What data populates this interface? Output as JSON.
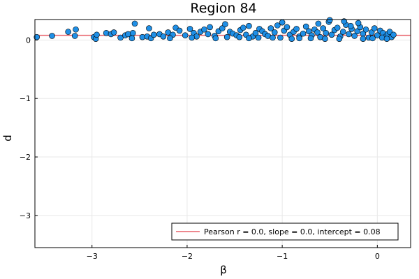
{
  "chart_data": {
    "type": "scatter",
    "title": "Region 84",
    "xlabel": "β",
    "ylabel": "d",
    "xlim": [
      -3.6,
      0.35
    ],
    "ylim": [
      -3.55,
      0.35
    ],
    "x_ticks": [
      -3,
      -2,
      -1,
      0
    ],
    "x_tick_labels": [
      "−3",
      "−2",
      "−1",
      "0"
    ],
    "y_ticks": [
      0,
      -1,
      -2,
      -3
    ],
    "y_tick_labels": [
      "0",
      "−1",
      "−2",
      "−3"
    ],
    "grid": true,
    "legend_position": "bottom-right",
    "colors": {
      "points": "#1f8fe6",
      "point_edge": "#000000",
      "fit_line": "#e8606a",
      "grid": "#e8e8e8"
    },
    "fit_line": {
      "label": "Pearson r = 0.0, slope = 0.0, intercept = 0.08",
      "slope": 0.0,
      "intercept": 0.08
    },
    "series": [
      {
        "x": [
          -3.58,
          -3.42,
          -3.25,
          -3.18,
          -3.17,
          -2.98,
          -2.96,
          -2.95,
          -2.85,
          -2.8,
          -2.77,
          -2.7,
          -2.65,
          -2.62,
          -2.57,
          -2.55,
          -2.47,
          -2.42,
          -2.38,
          -2.35,
          -2.29,
          -2.25,
          -2.2,
          -2.15,
          -2.12,
          -2.08,
          -2.02,
          -1.97,
          -1.93,
          -1.9,
          -1.86,
          -1.82,
          -1.78,
          -1.76,
          -1.71,
          -1.67,
          -1.63,
          -1.58,
          -1.55,
          -1.52,
          -1.48,
          -1.44,
          -1.41,
          -1.38,
          -1.35,
          -1.31,
          -1.28,
          -1.24,
          -1.21,
          -1.18,
          -1.15,
          -1.12,
          -1.08,
          -1.05,
          -1.02,
          -0.98,
          -0.95,
          -0.92,
          -0.88,
          -0.85,
          -0.82,
          -0.78,
          -0.75,
          -0.72,
          -0.69,
          -0.66,
          -0.63,
          -0.6,
          -0.57,
          -0.54,
          -0.51,
          -0.48,
          -0.45,
          -0.42,
          -0.39,
          -0.36,
          -0.33,
          -0.3,
          -0.27,
          -0.24,
          -0.21,
          -0.18,
          -0.15,
          -0.12,
          -0.09,
          -0.06,
          -0.03,
          0.0,
          0.03,
          0.06,
          0.09,
          0.11,
          0.13,
          0.15,
          0.17,
          -2.4,
          -2.58,
          -1.6,
          -1.0,
          -0.5,
          -0.62,
          -0.35,
          -0.28,
          -0.55,
          -0.82,
          -1.25,
          -1.45,
          -1.7,
          -1.95,
          -2.18,
          -0.15,
          -0.05,
          0.05,
          -0.4,
          -0.7,
          -0.9,
          -1.1,
          -1.35,
          -0.2,
          0.1
        ],
        "y": [
          0.05,
          0.07,
          0.14,
          0.07,
          0.18,
          0.05,
          0.02,
          0.09,
          0.12,
          0.1,
          0.13,
          0.04,
          0.08,
          0.1,
          0.12,
          0.28,
          0.05,
          0.06,
          0.03,
          0.09,
          0.1,
          0.06,
          0.13,
          0.09,
          0.21,
          0.16,
          0.08,
          0.19,
          0.12,
          0.06,
          0.14,
          0.18,
          0.1,
          0.22,
          0.07,
          0.15,
          0.2,
          0.05,
          0.14,
          0.11,
          0.08,
          0.17,
          0.21,
          0.09,
          0.24,
          0.06,
          0.12,
          0.19,
          0.15,
          0.1,
          0.07,
          0.2,
          0.13,
          0.25,
          0.04,
          0.16,
          0.22,
          0.09,
          0.14,
          0.19,
          0.06,
          0.11,
          0.23,
          0.15,
          0.08,
          0.18,
          0.13,
          0.05,
          0.2,
          0.12,
          0.31,
          0.09,
          0.17,
          0.21,
          0.06,
          0.14,
          0.26,
          0.1,
          0.19,
          0.07,
          0.15,
          0.22,
          0.11,
          0.18,
          0.04,
          0.13,
          0.2,
          0.08,
          0.16,
          0.12,
          0.06,
          0.1,
          0.14,
          0.05,
          0.09,
          0.2,
          0.03,
          0.27,
          0.3,
          0.34,
          0.28,
          0.32,
          0.24,
          0.02,
          0.03,
          0.04,
          0.05,
          0.03,
          0.04,
          0.03,
          0.02,
          0.03,
          0.04,
          0.02,
          0.03,
          0.02,
          0.04,
          0.03,
          0.29,
          0.02
        ]
      }
    ]
  }
}
